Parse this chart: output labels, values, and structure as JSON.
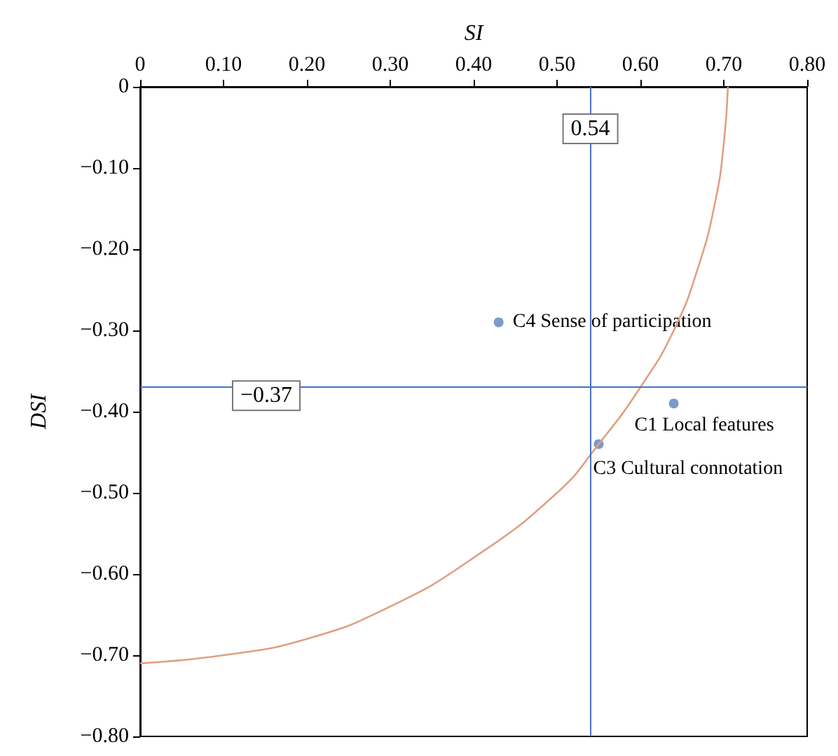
{
  "chart_data": {
    "type": "scatter",
    "xlabel": "SI",
    "ylabel": "DSI",
    "xlim": [
      0,
      0.8
    ],
    "xticks": [
      0,
      {
        "value": 0.1,
        "label": "0.10"
      },
      {
        "value": 0.2,
        "label": "0.20"
      },
      {
        "value": 0.3,
        "label": "0.30"
      },
      {
        "value": 0.4,
        "label": "0.40"
      },
      {
        "value": 0.5,
        "label": "0.50"
      },
      {
        "value": 0.6,
        "label": "0.60"
      },
      {
        "value": 0.7,
        "label": "0.70"
      },
      {
        "value": 0.8,
        "label": "0.80"
      }
    ],
    "ylim": [
      -0.8,
      0
    ],
    "yticks": [
      0,
      {
        "value": -0.1,
        "label": "−0.10"
      },
      {
        "value": -0.2,
        "label": "−0.20"
      },
      {
        "value": -0.3,
        "label": "−0.30"
      },
      {
        "value": -0.4,
        "label": "−0.40"
      },
      {
        "value": -0.5,
        "label": "−0.50"
      },
      {
        "value": -0.6,
        "label": "−0.60"
      },
      {
        "value": -0.7,
        "label": "−0.70"
      },
      {
        "value": -0.8,
        "label": "−0.80"
      }
    ],
    "series": [
      {
        "type": "line",
        "color": "#e0a082",
        "marker": "none",
        "line_style": "solid",
        "x": [
          0,
          0.1,
          0.2,
          0.3,
          0.4,
          0.5,
          0.55,
          0.6,
          0.64,
          0.67,
          0.69,
          0.7,
          0.705
        ],
        "values": [
          -0.71,
          -0.7,
          -0.68,
          -0.64,
          -0.58,
          -0.5,
          -0.44,
          -0.37,
          -0.3,
          -0.22,
          -0.14,
          -0.07,
          0
        ]
      },
      {
        "color": "#5b80bd",
        "marker": "circle",
        "x": [
          0.43,
          0.64,
          0.55
        ],
        "values": [
          -0.29,
          -0.39,
          -0.44
        ]
      }
    ],
    "ref_lines": [
      {
        "axis": "x",
        "value": 0.54,
        "label": "0.54",
        "color": "#4472c4"
      },
      {
        "axis": "y",
        "value": -0.37,
        "label": "−0.37",
        "color": "#4472c4"
      }
    ],
    "annotations": [
      {
        "text": "C4 Sense of participation",
        "x": 0.43,
        "y": -0.29
      },
      {
        "text": "C1 Local features",
        "x": 0.64,
        "y": -0.39
      },
      {
        "text": "C3 Cultural connotation",
        "x": 0.55,
        "y": -0.44
      }
    ]
  }
}
